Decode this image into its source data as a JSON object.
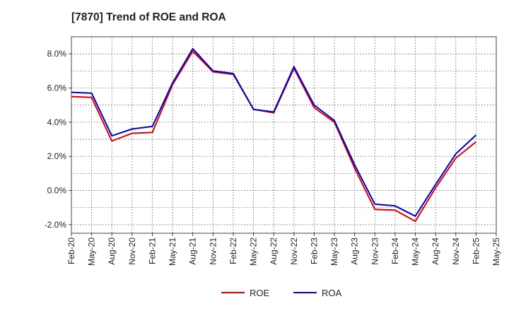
{
  "chart_data": {
    "type": "line",
    "title": "[7870]  Trend of ROE and ROA",
    "xlabel": "",
    "ylabel": "",
    "categories": [
      "Feb-20",
      "May-20",
      "Aug-20",
      "Nov-20",
      "Feb-21",
      "May-21",
      "Aug-21",
      "Nov-21",
      "Feb-22",
      "May-22",
      "Aug-22",
      "Nov-22",
      "Feb-23",
      "May-23",
      "Aug-23",
      "Nov-23",
      "Feb-24",
      "May-24",
      "Aug-24",
      "Nov-24",
      "Feb-25",
      "May-25"
    ],
    "y_ticks": [
      "8.0%",
      "6.0%",
      "4.0%",
      "2.0%",
      "0.0%",
      "-2.0%"
    ],
    "ylim": [
      -2.5,
      9.0
    ],
    "grid": true,
    "legend_position": "bottom-center",
    "series": [
      {
        "name": "ROE",
        "color": "#e00000",
        "values": [
          5.5,
          5.45,
          2.9,
          3.35,
          3.4,
          6.2,
          8.15,
          6.95,
          6.8,
          4.75,
          4.55,
          7.15,
          4.85,
          4.0,
          1.3,
          -1.1,
          -1.15,
          -1.8,
          0.15,
          1.9,
          2.85,
          null
        ]
      },
      {
        "name": "ROA",
        "color": "#0000cc",
        "values": [
          5.75,
          5.7,
          3.2,
          3.6,
          3.75,
          6.3,
          8.3,
          7.0,
          6.85,
          4.75,
          4.6,
          7.25,
          5.0,
          4.1,
          1.5,
          -0.8,
          -0.9,
          -1.5,
          0.35,
          2.15,
          3.25,
          null
        ]
      }
    ]
  }
}
